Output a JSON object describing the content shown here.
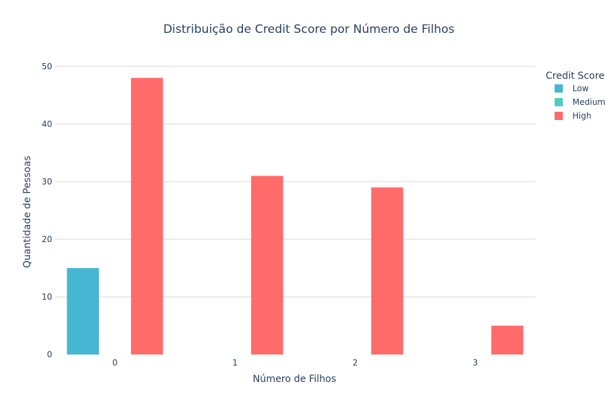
{
  "chart_data": {
    "type": "bar",
    "title": "Distribuição de Credit Score por Número de Filhos",
    "xlabel": "Número de Filhos",
    "ylabel": "Quantidade de Pessoas",
    "categories": [
      "0",
      "1",
      "2",
      "3"
    ],
    "series": [
      {
        "name": "Low",
        "color": "#47b6d3",
        "values": [
          15,
          0,
          0,
          0
        ]
      },
      {
        "name": "Medium",
        "color": "#4ecdc4",
        "values": [
          0,
          0,
          0,
          0
        ]
      },
      {
        "name": "High",
        "color": "#ff6b6b",
        "values": [
          48,
          31,
          29,
          5
        ]
      }
    ],
    "ylim": [
      0,
      52
    ],
    "yticks": [
      0,
      10,
      20,
      30,
      40,
      50
    ],
    "grid": true,
    "legend": {
      "title": "Credit Score",
      "placement": "top-right"
    }
  }
}
